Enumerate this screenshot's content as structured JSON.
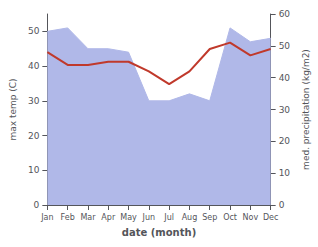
{
  "chart_data": {
    "type": "line",
    "categories": [
      "Jan",
      "Feb",
      "Mar",
      "Apr",
      "May",
      "Jun",
      "Jul",
      "Aug",
      "Sep",
      "Oct",
      "Nov",
      "Dec"
    ],
    "series": [
      {
        "type": "area",
        "color": "#b0b8e8",
        "values": [
          50,
          51,
          45,
          45,
          44,
          30,
          30,
          32,
          30,
          51,
          47,
          48
        ]
      },
      {
        "type": "line",
        "color": "#c0392b",
        "axis": "y2",
        "values": [
          48,
          44,
          44,
          45,
          45,
          42,
          38,
          42,
          49,
          51,
          47,
          49
        ]
      }
    ],
    "xlabel": "date (month)",
    "ylabel": "max temp (C)",
    "y2label": "med. precipitation (kg/m2)",
    "ylim": [
      0,
      55
    ],
    "yticks": [
      0,
      10,
      20,
      30,
      40,
      50
    ],
    "y2lim": [
      0,
      60
    ],
    "y2ticks": [
      0,
      10,
      20,
      30,
      40,
      50,
      60
    ],
    "grid": false
  }
}
